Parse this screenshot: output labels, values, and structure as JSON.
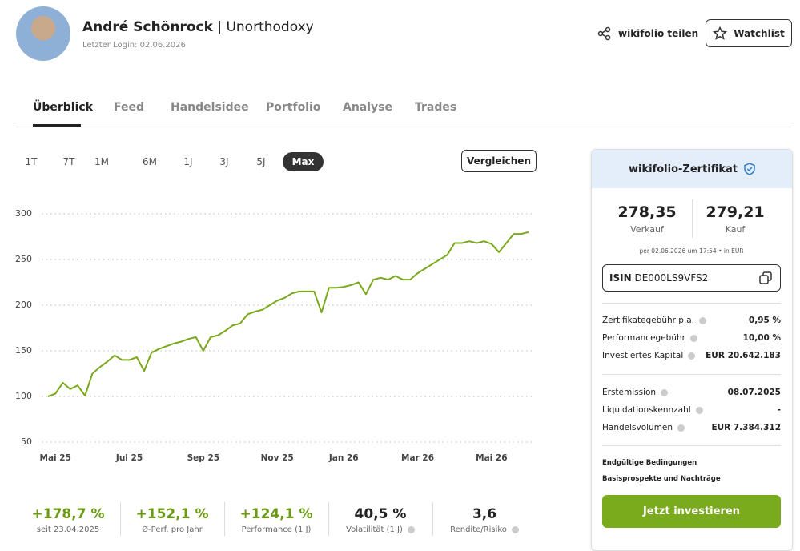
{
  "header": {
    "name": "André Schönrock",
    "separator": "|",
    "wikifolio": "Unorthodoxy",
    "last_login": "Letzter Login: 02.06.2026",
    "share": "wikifolio teilen",
    "watchlist": "Watchlist"
  },
  "tabs": [
    "Überblick",
    "Feed",
    "Handelsidee",
    "Portfolio",
    "Analyse",
    "Trades"
  ],
  "ranges": [
    "1T",
    "7T",
    "1M",
    "6M",
    "1J",
    "3J",
    "5J",
    "Max"
  ],
  "compare": "Vergleichen",
  "chart_data": {
    "type": "line",
    "color": "#7aa81c",
    "grid": true,
    "values": [
      100,
      103,
      115,
      108,
      112,
      101,
      125,
      132,
      138,
      145,
      140,
      140,
      143,
      128,
      148,
      152,
      155,
      158,
      160,
      163,
      165,
      150,
      165,
      167,
      172,
      178,
      180,
      190,
      193,
      195,
      200,
      205,
      208,
      213,
      215,
      215,
      215,
      192,
      219,
      219,
      220,
      222,
      225,
      212,
      228,
      230,
      228,
      232,
      228,
      228,
      235,
      240,
      245,
      250,
      255,
      268,
      268,
      270,
      268,
      270,
      267,
      258,
      268,
      278,
      278,
      280
    ],
    "xlim": [
      0,
      65
    ],
    "xticks": [
      {
        "value": 1,
        "label": "Mai 25"
      },
      {
        "value": 11,
        "label": "Jul 25"
      },
      {
        "value": 21,
        "label": "Sep 25"
      },
      {
        "value": 31,
        "label": "Nov 25"
      },
      {
        "value": 40,
        "label": "Jan 26"
      },
      {
        "value": 50,
        "label": "Mar 26"
      },
      {
        "value": 60,
        "label": "Mai 26"
      }
    ],
    "ylim": [
      50,
      300
    ],
    "yticks": [
      50,
      100,
      150,
      200,
      250,
      300
    ]
  },
  "stats": [
    {
      "value": "+178,7 %",
      "label": "seit 23.04.2025"
    },
    {
      "value": "+152,1 %",
      "label": "Ø-Perf. pro Jahr"
    },
    {
      "value": "+124,1 %",
      "label": "Performance (1 J)"
    },
    {
      "value": "40,5 %",
      "label": "Volatilität (1 J)"
    },
    {
      "value": "3,6",
      "label": "Rendite/Risiko"
    }
  ],
  "panel": {
    "title": "wikifolio-Zertifikat",
    "sell": {
      "value": "278,35",
      "label": "Verkauf"
    },
    "buy": {
      "value": "279,21",
      "label": "Kauf"
    },
    "note": "per 02.06.2026 um 17:54 • in EUR",
    "isin_label": "ISIN",
    "isin": "DE000LS9VFS2",
    "rows": [
      [
        "Zertifikategebühr p.a.",
        "0,95 %"
      ],
      [
        "Performancegebühr",
        "10,00 %"
      ],
      [
        "Investiertes Kapital",
        "EUR 20.642.183"
      ]
    ],
    "rows2": [
      [
        "Erstemission",
        "08.07.2025"
      ],
      [
        "Liquidationskennzahl",
        "-"
      ],
      [
        "Handelsvolumen",
        "EUR 7.384.312"
      ]
    ],
    "links": [
      "Endgültige Bedingungen",
      "Basisprospekte und Nachträge"
    ],
    "invest": "Jetzt investieren"
  }
}
